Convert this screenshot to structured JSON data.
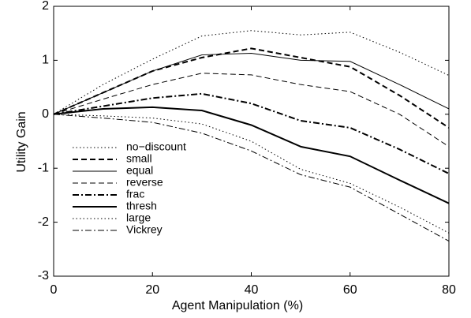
{
  "chart_data": {
    "type": "line",
    "xlabel": "Agent Manipulation (%)",
    "ylabel": "Utility Gain",
    "x": [
      0,
      10,
      20,
      30,
      40,
      50,
      60,
      70,
      80
    ],
    "xlim": [
      0,
      80
    ],
    "xticks": [
      0,
      20,
      40,
      60,
      80
    ],
    "ylim": [
      -3,
      2
    ],
    "yticks": [
      -3,
      -2,
      -1,
      0,
      1,
      2
    ],
    "grid": false,
    "legend": "lower left",
    "series": [
      {
        "name": "no−discount",
        "color": "#000000",
        "linestyle": "dotted",
        "linewidth": 1,
        "values": [
          0,
          0.55,
          1.02,
          1.45,
          1.55,
          1.47,
          1.52,
          1.15,
          0.72
        ]
      },
      {
        "name": "small",
        "color": "#000000",
        "linestyle": "dashed",
        "linewidth": 2,
        "values": [
          0,
          0.4,
          0.8,
          1.05,
          1.22,
          1.05,
          0.88,
          0.35,
          -0.25
        ]
      },
      {
        "name": "equal",
        "color": "#000000",
        "linestyle": "solid",
        "linewidth": 1,
        "values": [
          0,
          0.4,
          0.8,
          1.1,
          1.13,
          1.0,
          0.98,
          0.55,
          0.1
        ]
      },
      {
        "name": "reverse",
        "color": "#000000",
        "linestyle": "dashed",
        "linewidth": 1,
        "values": [
          0,
          0.28,
          0.55,
          0.76,
          0.73,
          0.55,
          0.42,
          0.0,
          -0.6
        ]
      },
      {
        "name": "frac",
        "color": "#000000",
        "linestyle": "dashdot",
        "linewidth": 2,
        "values": [
          0,
          0.15,
          0.3,
          0.38,
          0.2,
          -0.12,
          -0.25,
          -0.65,
          -1.1
        ]
      },
      {
        "name": "thresh",
        "color": "#000000",
        "linestyle": "solid",
        "linewidth": 2,
        "values": [
          0,
          0.1,
          0.13,
          0.07,
          -0.2,
          -0.6,
          -0.78,
          -1.22,
          -1.65
        ]
      },
      {
        "name": "large",
        "color": "#000000",
        "linestyle": "dotted",
        "linewidth": 1,
        "values": [
          0,
          -0.03,
          -0.07,
          -0.18,
          -0.5,
          -1.02,
          -1.28,
          -1.72,
          -2.2
        ]
      },
      {
        "name": "Vickrey",
        "color": "#000000",
        "linestyle": "dashdot",
        "linewidth": 1,
        "values": [
          0,
          -0.07,
          -0.15,
          -0.35,
          -0.68,
          -1.12,
          -1.35,
          -1.85,
          -2.35
        ]
      }
    ]
  }
}
